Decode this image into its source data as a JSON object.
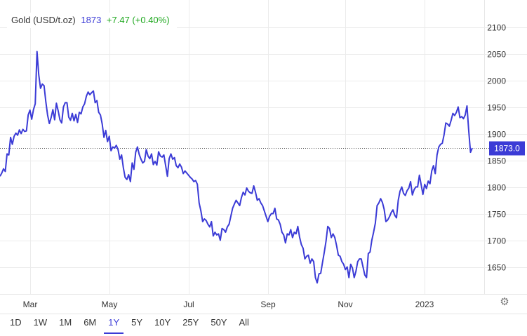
{
  "header": {
    "title": "Gold (USD/t.oz)",
    "price": "1873",
    "change": "+7.47 (+0.40%)"
  },
  "ranges": [
    "1D",
    "1W",
    "1M",
    "6M",
    "1Y",
    "5Y",
    "10Y",
    "25Y",
    "50Y",
    "All"
  ],
  "active_range": "1Y",
  "icons": {
    "settings": "gear-icon"
  },
  "colors": {
    "line": "#3b3bd6",
    "change_positive": "#1fa81f",
    "price_tag": "#3b3bd6"
  },
  "chart_data": {
    "type": "line",
    "x_labels": [
      "Mar",
      "May",
      "Jul",
      "Sep",
      "Nov",
      "2023"
    ],
    "y_ticks": [
      1650,
      1700,
      1750,
      1800,
      1850,
      1900,
      1950,
      2000,
      2050,
      2100
    ],
    "ylim": [
      1600,
      2120
    ],
    "current_value_label": "1873.0",
    "current_value": 1873,
    "grid": true,
    "series": [
      {
        "values": [
          1820,
          1826,
          1834,
          1829,
          1862,
          1860,
          1893,
          1880,
          1895,
          1901,
          1897,
          1907,
          1900,
          1908,
          1904,
          1905,
          1935,
          1944,
          1927,
          1945,
          1956,
          2054,
          2010,
          1985,
          1993,
          1990,
          1960,
          1935,
          1919,
          1930,
          1945,
          1926,
          1957,
          1943,
          1926,
          1920,
          1950,
          1958,
          1958,
          1931,
          1925,
          1938,
          1924,
          1936,
          1921,
          1940,
          1937,
          1950,
          1956,
          1970,
          1978,
          1973,
          1977,
          1980,
          1958,
          1962,
          1940,
          1935,
          1918,
          1893,
          1906,
          1885,
          1895,
          1868,
          1875,
          1873,
          1878,
          1870,
          1852,
          1860,
          1836,
          1818,
          1814,
          1823,
          1810,
          1845,
          1833,
          1865,
          1875,
          1861,
          1852,
          1845,
          1848,
          1870,
          1858,
          1853,
          1862,
          1842,
          1848,
          1841,
          1866,
          1858,
          1856,
          1860,
          1840,
          1820,
          1853,
          1862,
          1852,
          1855,
          1840,
          1836,
          1843,
          1837,
          1825,
          1830,
          1826,
          1822,
          1818,
          1815,
          1810,
          1812,
          1805,
          1770,
          1755,
          1735,
          1740,
          1737,
          1730,
          1725,
          1735,
          1708,
          1715,
          1710,
          1712,
          1700,
          1722,
          1720,
          1715,
          1725,
          1730,
          1745,
          1760,
          1768,
          1775,
          1770,
          1765,
          1780,
          1790,
          1785,
          1798,
          1792,
          1789,
          1788,
          1802,
          1790,
          1775,
          1778,
          1770,
          1765,
          1755,
          1745,
          1735,
          1745,
          1750,
          1750,
          1760,
          1740,
          1738,
          1730,
          1715,
          1710,
          1695,
          1712,
          1710,
          1720,
          1705,
          1715,
          1712,
          1726,
          1706,
          1692,
          1685,
          1665,
          1670,
          1672,
          1657,
          1665,
          1660,
          1630,
          1620,
          1637,
          1638,
          1658,
          1677,
          1698,
          1726,
          1722,
          1705,
          1712,
          1705,
          1690,
          1672,
          1670,
          1660,
          1655,
          1645,
          1650,
          1630,
          1655,
          1648,
          1630,
          1642,
          1660,
          1665,
          1665,
          1650,
          1635,
          1630,
          1675,
          1678,
          1700,
          1715,
          1732,
          1765,
          1770,
          1778,
          1771,
          1758,
          1735,
          1738,
          1744,
          1752,
          1757,
          1747,
          1742,
          1775,
          1792,
          1800,
          1788,
          1784,
          1793,
          1798,
          1810,
          1785,
          1795,
          1800,
          1800,
          1822,
          1804,
          1786,
          1805,
          1797,
          1811,
          1806,
          1830,
          1840,
          1825,
          1860,
          1875,
          1880,
          1882,
          1898,
          1920,
          1918,
          1914,
          1925,
          1938,
          1934,
          1940,
          1950,
          1930,
          1932,
          1928,
          1935,
          1952,
          1905,
          1865,
          1873
        ]
      }
    ]
  }
}
